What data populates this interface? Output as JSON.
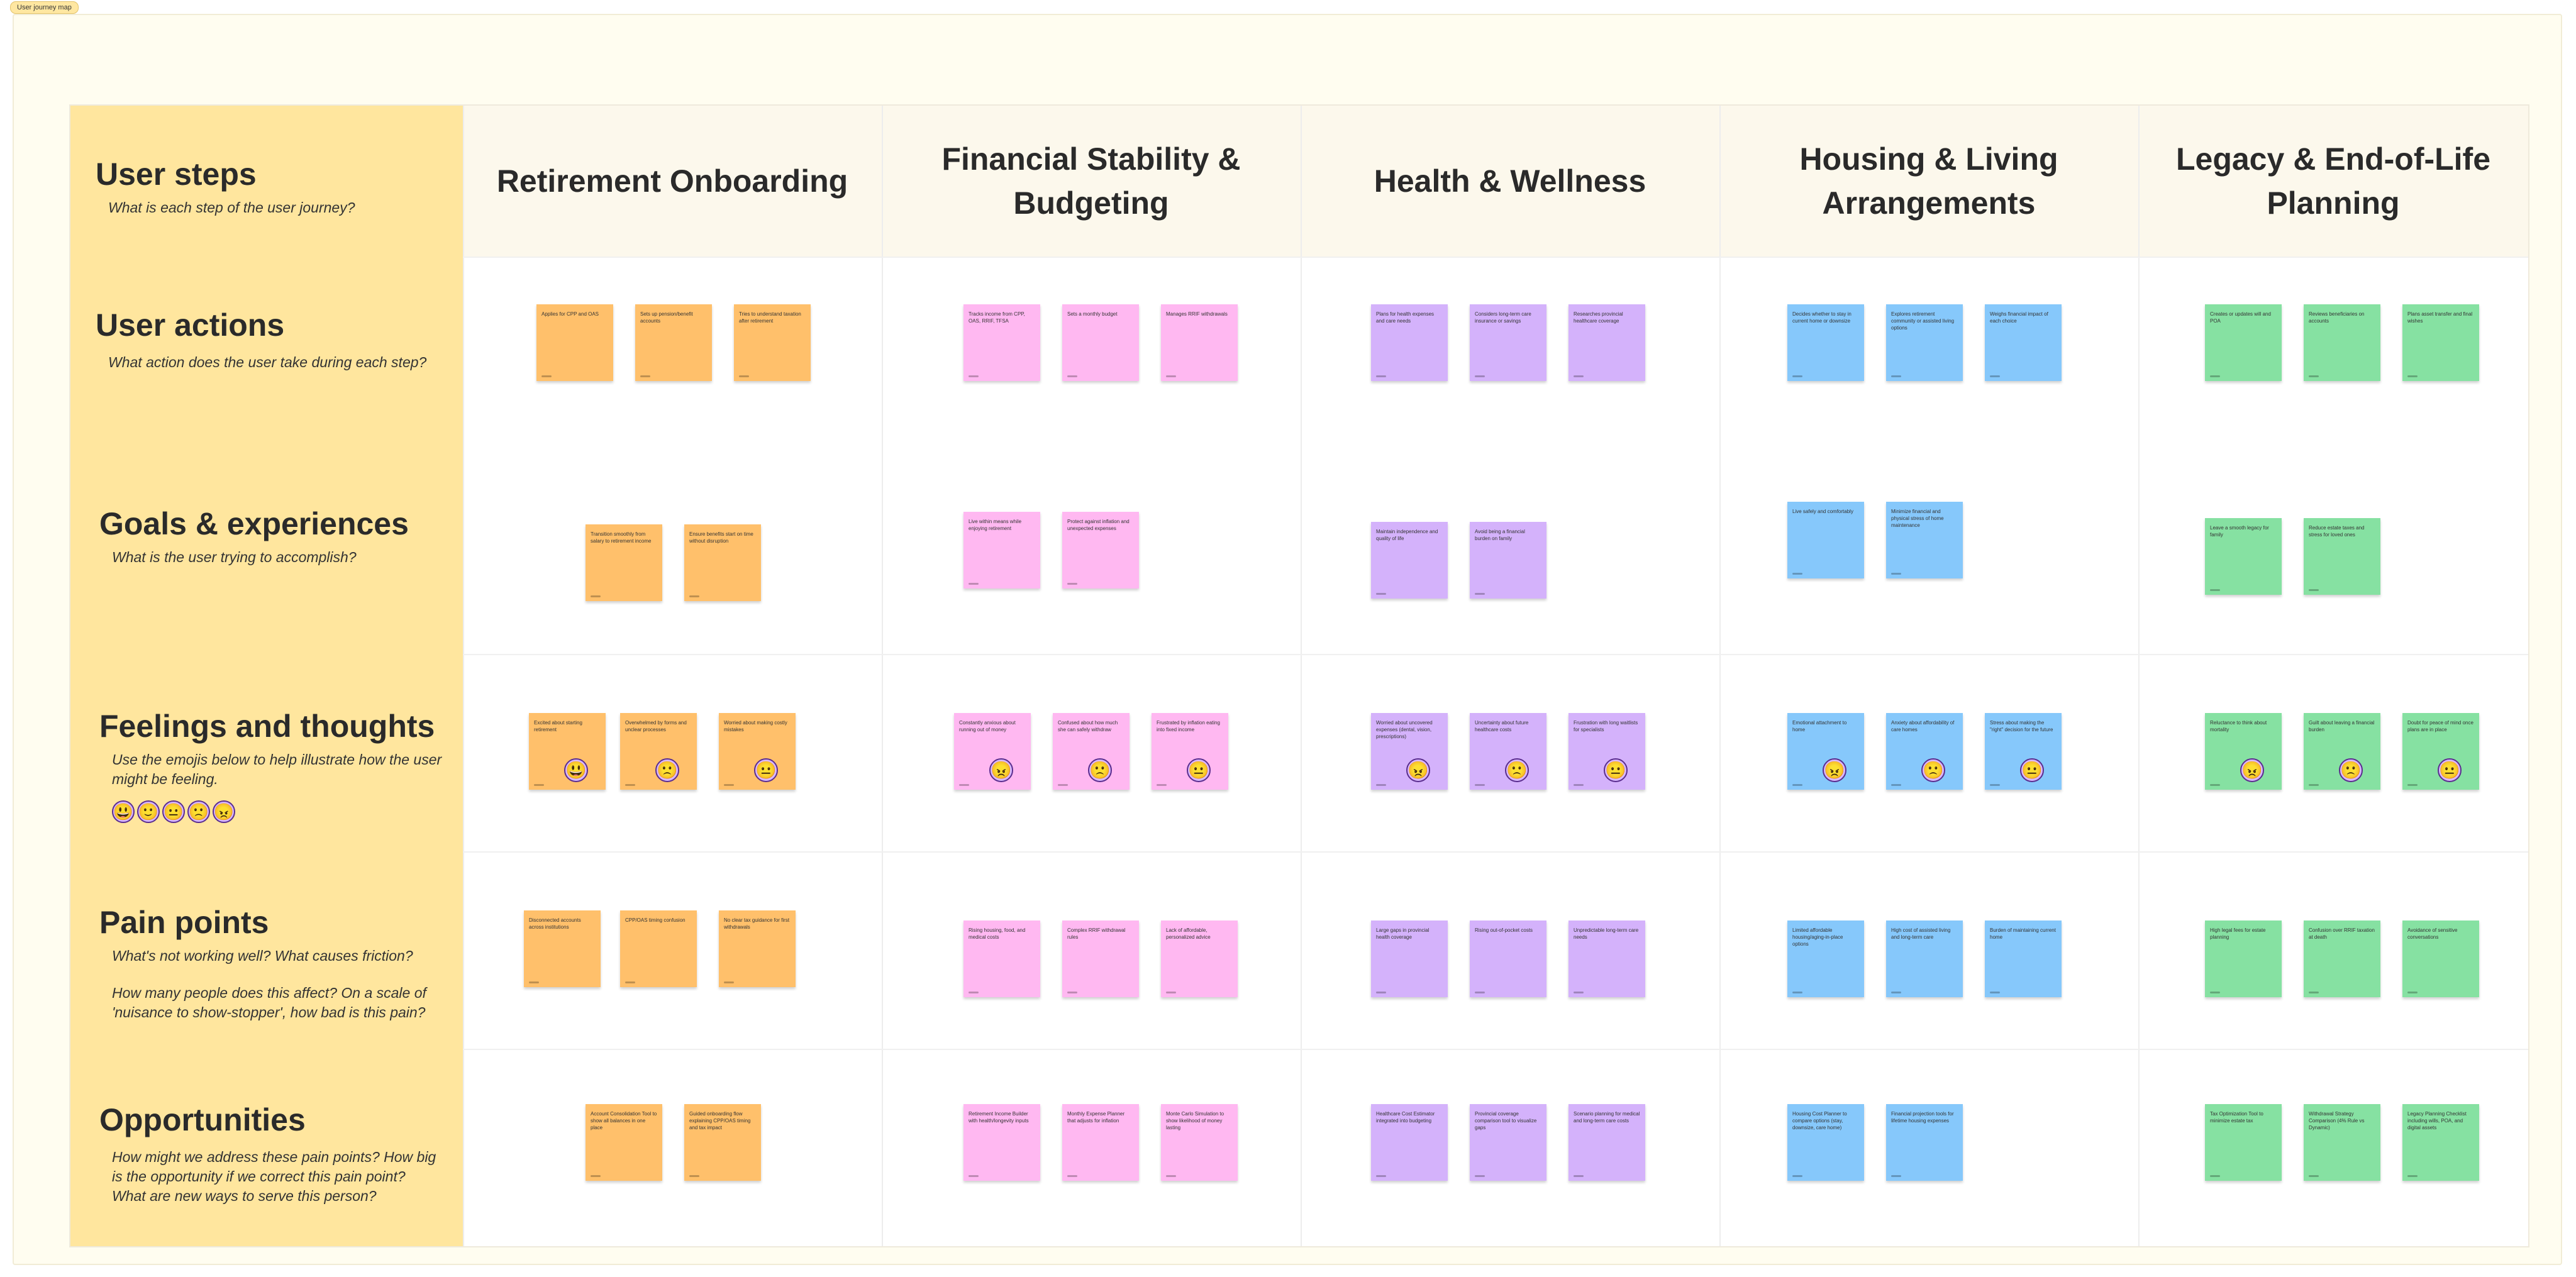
{
  "frame_tag": "User journey map",
  "lanes": [
    {
      "title": "User steps",
      "sub": "What is each step of the user journey?"
    },
    {
      "title": "User actions",
      "sub": "What action does the user take during each step?"
    },
    {
      "title": "Goals & experiences",
      "sub": "What is the user trying to accomplish?"
    },
    {
      "title": "Feelings and thoughts",
      "sub": "Use the emojis below to help illustrate how the user might be feeling."
    },
    {
      "title": "Pain points",
      "sub": "What's not working well? What causes friction?",
      "sub2": "How many people does this affect? On a scale of 'nuisance to show-stopper', how bad is this pain?"
    },
    {
      "title": "Opportunities",
      "sub": "How might we address these pain points? How big is the opportunity if we correct this pain point?",
      "sub2": "What are new ways to serve this person?"
    }
  ],
  "feeling_emojis": [
    "😃",
    "🙂",
    "😐",
    "🙁",
    "😠"
  ],
  "columns": [
    {
      "title": "Retirement Onboarding",
      "color": "orange",
      "actions": [
        "Applies for CPP and OAS",
        "Sets up pension/benefit accounts",
        "Tries to understand taxation after retirement"
      ],
      "goals": [
        "Transition smoothly from salary to retirement income",
        "Ensure benefits start on time without disruption"
      ],
      "feelings": [
        {
          "text": "Excited about starting retirement",
          "emoji": "😃"
        },
        {
          "text": "Overwhelmed by forms and unclear processes",
          "emoji": "🙁"
        },
        {
          "text": "Worried about making costly mistakes",
          "emoji": "😐"
        }
      ],
      "pains": [
        "Disconnected accounts across institutions",
        "CPP/OAS timing confusion",
        "No clear tax guidance for first withdrawals"
      ],
      "opps": [
        "Account Consolidation Tool to show all balances in one place",
        "Guided onboarding flow explaining CPP/OAS timing and tax impact"
      ]
    },
    {
      "title": "Financial Stability & Budgeting",
      "color": "pink",
      "actions": [
        "Tracks income from CPP, OAS, RRIF, TFSA",
        "Sets a monthly budget",
        "Manages RRIF withdrawals"
      ],
      "goals": [
        "Live within means while enjoying retirement",
        "Protect against inflation and unexpected expenses"
      ],
      "feelings": [
        {
          "text": "Constantly anxious about running out of money",
          "emoji": "😠"
        },
        {
          "text": "Confused about how much she can safely withdraw",
          "emoji": "🙁"
        },
        {
          "text": "Frustrated by inflation eating into fixed income",
          "emoji": "😐"
        }
      ],
      "pains": [
        "Rising housing, food, and medical costs",
        "Complex RRIF withdrawal rules",
        "Lack of affordable, personalized advice"
      ],
      "opps": [
        "Retirement Income Builder with health/longevity inputs",
        "Monthly Expense Planner that adjusts for inflation",
        "Monte Carlo Simulation to show likelihood of money lasting"
      ]
    },
    {
      "title": "Health & Wellness",
      "color": "purple",
      "actions": [
        "Plans for health expenses and care needs",
        "Considers long-term care insurance or savings",
        "Researches provincial healthcare coverage"
      ],
      "goals": [
        "Maintain independence and quality of life",
        "Avoid being a financial burden on family"
      ],
      "feelings": [
        {
          "text": "Worried about uncovered expenses (dental, vision, prescriptions)",
          "emoji": "😠"
        },
        {
          "text": "Uncertainty about future healthcare costs",
          "emoji": "🙁"
        },
        {
          "text": "Frustration with long waitlists for specialists",
          "emoji": "😐"
        }
      ],
      "pains": [
        "Large gaps in provincial health coverage",
        "Rising out-of-pocket costs",
        "Unpredictable long-term care needs"
      ],
      "opps": [
        "Healthcare Cost Estimator integrated into budgeting",
        "Provincial coverage comparison tool to visualize gaps",
        "Scenario planning for medical and long-term care costs"
      ]
    },
    {
      "title": "Housing & Living Arrangements",
      "color": "blue",
      "actions": [
        "Decides whether to stay in current home or downsize",
        "Explores retirement community or assisted living options",
        "Weighs financial impact of each choice"
      ],
      "goals": [
        "Live safely and comfortably",
        "Minimize financial and physical stress of home maintenance"
      ],
      "feelings": [
        {
          "text": "Emotional attachment to home",
          "emoji": "😠"
        },
        {
          "text": "Anxiety about affordability of care homes",
          "emoji": "🙁"
        },
        {
          "text": "Stress about making the \"right\" decision for the future",
          "emoji": "😐"
        }
      ],
      "pains": [
        "Limited affordable housing/aging-in-place options",
        "High cost of assisted living and long-term care",
        "Burden of maintaining current home"
      ],
      "opps": [
        "Housing Cost Planner to compare options (stay, downsize, care home)",
        "Financial projection tools for lifetime housing expenses"
      ]
    },
    {
      "title": "Legacy & End-of-Life Planning",
      "color": "green",
      "actions": [
        "Creates or updates will and POA",
        "Reviews beneficiaries on accounts",
        "Plans asset transfer and final wishes"
      ],
      "goals": [
        "Leave a smooth legacy for family",
        "Reduce estate taxes and stress for loved ones"
      ],
      "feelings": [
        {
          "text": "Reluctance to think about mortality",
          "emoji": "😠"
        },
        {
          "text": "Guilt about leaving a financial burden",
          "emoji": "🙁"
        },
        {
          "text": "Doubt for peace of mind once plans are in place",
          "emoji": "😐"
        }
      ],
      "pains": [
        "High legal fees for estate planning",
        "Confusion over RRIF taxation at death",
        "Avoidance of sensitive conversations"
      ],
      "opps": [
        "Tax Optimization Tool to minimize estate tax",
        "Withdrawal Strategy Comparison (4% Rule vs Dynamic)",
        "Legacy Planning Checklist including wills, POA, and digital assets"
      ]
    }
  ]
}
